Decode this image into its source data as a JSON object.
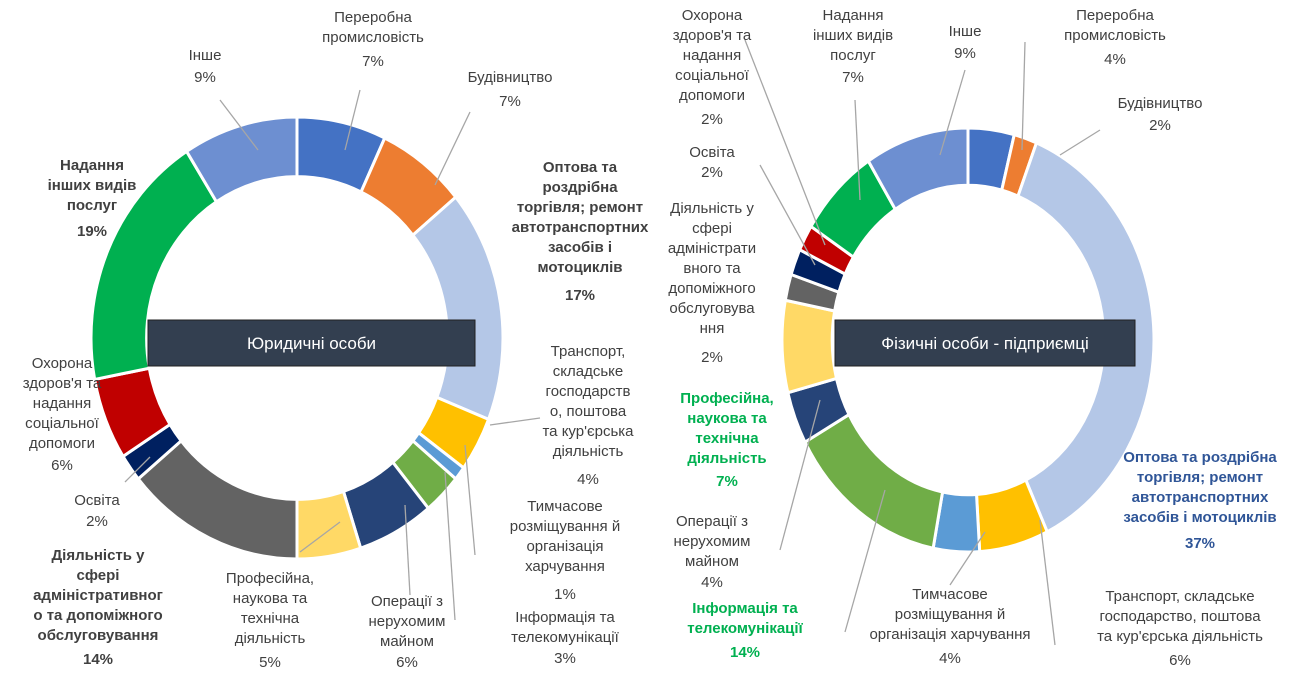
{
  "chart_data": [
    {
      "type": "donut",
      "title": "Юридичні особи",
      "categories": [
        "Переробна\nпромисловість",
        "Будівництво",
        "Оптова та\nроздрібна\nторгівля; ремонт\nавтотранспортних\nзасобів і\nмотоциклів",
        "Транспорт,\nскладське\nгосподарств\nо, поштова\nта кур'єрська\nдіяльність",
        "Тимчасове\nрозміщування й\nорганізація\nхарчування",
        "Інформація та\nтелекомунікації",
        "Операції з\nнерухомим\nмайном",
        "Професійна,\nнаукова та\nтехнічна\nдіяльність",
        "Діяльність у\nсфері\nадміністративног\nо та допоміжного\nобслуговування",
        "Освіта",
        "Охорона\nздоров'я та\nнадання\nсоціальної\nдопомоги",
        "Надання\nінших видів\nпослуг",
        "Інше"
      ],
      "values": [
        7,
        7,
        17,
        4,
        1,
        3,
        6,
        5,
        14,
        2,
        6,
        19,
        9
      ],
      "value_labels": [
        "7%",
        "7%",
        "17%",
        "4%",
        "1%",
        "3%",
        "6%",
        "5%",
        "14%",
        "2%",
        "6%",
        "19%",
        "9%"
      ],
      "colors": [
        "#4472c4",
        "#ed7d31",
        "#b4c7e7",
        "#ffc000",
        "#5b9bd5",
        "#70ad47",
        "#264478",
        "#ffd966",
        "#636363",
        "#002060",
        "#c00000",
        "#00b050",
        "#6d8fd1"
      ]
    },
    {
      "type": "donut",
      "title": "Фізичні особи - підприємці",
      "categories": [
        "Переробна\nпромисловість",
        "Будівництво",
        "Оптова та роздрібна\nторгівля; ремонт\nавтотранспортних\nзасобів і мотоциклів",
        "Транспорт, складське\nгосподарство, поштова\nта кур'єрська діяльність",
        "Тимчасове\nрозміщування й\nорганізація харчування",
        "Інформація та\nтелекомунікації",
        "Операції з\nнерухомим\nмайном",
        "Професійна,\nнаукова та\nтехнічна\nдіяльність",
        "Діяльність у\nсфері\nадміністрати\nвного та\nдопоміжного\nобслуговува\nння",
        "Освіта",
        "Охорона\nздоров'я та\nнадання\nсоціальної\nдопомоги",
        "Надання\nінших видів\nпослуг",
        "Інше"
      ],
      "values": [
        4,
        2,
        37,
        6,
        4,
        14,
        4,
        7,
        2,
        2,
        2,
        7,
        9
      ],
      "value_labels": [
        "4%",
        "2%",
        "37%",
        "6%",
        "4%",
        "14%",
        "4%",
        "7%",
        "2%",
        "2%",
        "2%",
        "7%",
        "9%"
      ],
      "colors": [
        "#4472c4",
        "#ed7d31",
        "#b4c7e7",
        "#ffc000",
        "#5b9bd5",
        "#70ad47",
        "#264478",
        "#ffd966",
        "#636363",
        "#002060",
        "#c00000",
        "#00b050",
        "#6d8fd1"
      ]
    }
  ]
}
